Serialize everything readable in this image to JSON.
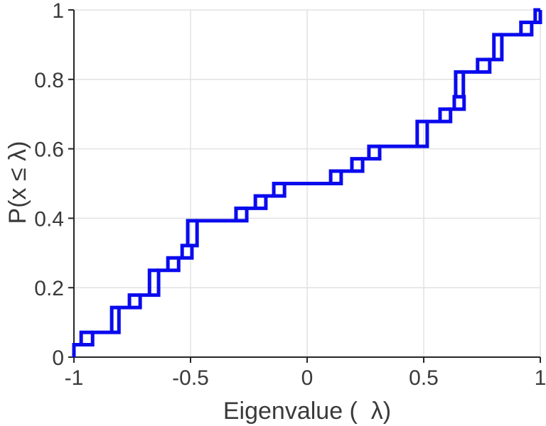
{
  "figure": {
    "background": "#ffffff",
    "axis_color": "#262626",
    "grid_color": "#e2e2e2",
    "tick_label_color": "#3a3a3a",
    "curve_color": "#0a0aee",
    "curve_width": 5
  },
  "chart_data": {
    "type": "line",
    "subtype": "empirical-cdf-staircase",
    "title": "",
    "xlabel": "Eigenvalue (  λ)",
    "ylabel": "P(x ≤ λ)",
    "xlim": [
      -1,
      1
    ],
    "ylim": [
      0,
      1
    ],
    "grid": true,
    "legend": null,
    "n_samples": 28,
    "step_increment": 0.0357,
    "x_ticks": [
      -1,
      -0.5,
      0,
      0.5,
      1
    ],
    "x_tick_labels": [
      "-1",
      "-0.5",
      "0",
      "0.5",
      "1"
    ],
    "y_ticks": [
      0,
      0.2,
      0.4,
      0.6,
      0.8,
      1
    ],
    "y_tick_labels": [
      "0",
      "0.2",
      "0.4",
      "0.6",
      "0.8",
      "1"
    ],
    "steps_note": "each step: [lambda_start, lambda_end, P_before, P_after]; start/end differ where two close eigenvalues draw a small notch square",
    "steps": [
      [
        -1.0,
        -1.0,
        0.0,
        0.0357
      ],
      [
        -0.969,
        -0.92,
        0.0357,
        0.0714
      ],
      [
        -0.838,
        -0.807,
        0.0714,
        0.1429
      ],
      [
        -0.762,
        -0.716,
        0.1429,
        0.1786
      ],
      [
        -0.676,
        -0.637,
        0.1786,
        0.25
      ],
      [
        -0.597,
        -0.551,
        0.25,
        0.2857
      ],
      [
        -0.536,
        -0.494,
        0.2857,
        0.3214
      ],
      [
        -0.512,
        -0.472,
        0.3214,
        0.3929
      ],
      [
        -0.305,
        -0.259,
        0.3929,
        0.4286
      ],
      [
        -0.222,
        -0.177,
        0.4286,
        0.4643
      ],
      [
        -0.143,
        -0.097,
        0.4643,
        0.5
      ],
      [
        0.101,
        0.146,
        0.5,
        0.5357
      ],
      [
        0.192,
        0.238,
        0.5357,
        0.5714
      ],
      [
        0.265,
        0.311,
        0.5714,
        0.6071
      ],
      [
        0.472,
        0.515,
        0.6071,
        0.6786
      ],
      [
        0.57,
        0.615,
        0.6786,
        0.7143
      ],
      [
        0.631,
        0.673,
        0.7143,
        0.75
      ],
      [
        0.637,
        0.67,
        0.75,
        0.8214
      ],
      [
        0.731,
        0.783,
        0.8214,
        0.8571
      ],
      [
        0.801,
        0.835,
        0.8571,
        0.9286
      ],
      [
        0.917,
        0.963,
        0.9286,
        0.9643
      ],
      [
        0.978,
        1.0,
        0.9643,
        1.0
      ]
    ]
  }
}
